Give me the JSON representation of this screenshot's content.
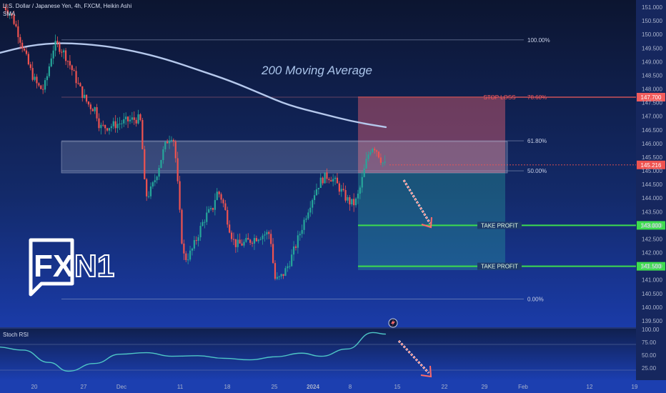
{
  "header": {
    "title": "U.S. Dollar / Japanese Yen, 4h, FXCM, Heikin Ashi",
    "indicator": "SMA"
  },
  "logo": {
    "part1": "FX",
    "part2": "N1"
  },
  "colors": {
    "bull": "#26a69a",
    "bear": "#ef5350",
    "sma": "#b5c8ec",
    "stop": "#f25c5c",
    "target": "#3ddc4e",
    "stoch": "#4ec6c6"
  },
  "price_axis": {
    "labels": [
      "151.000",
      "150.500",
      "150.000",
      "149.500",
      "149.000",
      "148.500",
      "148.000",
      "147.500",
      "147.000",
      "146.500",
      "146.000",
      "145.500",
      "145.000",
      "144.500",
      "144.000",
      "143.500",
      "143.000",
      "142.500",
      "142.000",
      "141.500",
      "141.000",
      "140.500",
      "140.000",
      "139.500"
    ]
  },
  "time_axis": {
    "labels": [
      "20",
      "27",
      "Dec",
      "11",
      "18",
      "25",
      "2024",
      "8",
      "15",
      "22",
      "29",
      "Feb",
      "12",
      "19"
    ]
  },
  "chart_data": {
    "type": "candlestick",
    "title": "U.S. Dollar / Japanese Yen, 4h, FXCM, Heikin Ashi",
    "ylim": [
      139.5,
      151.2
    ],
    "swing_points": [
      {
        "date": "Nov 16",
        "price": 151.0
      },
      {
        "date": "Nov 22",
        "price": 148.0
      },
      {
        "date": "Nov 24",
        "price": 149.6
      },
      {
        "date": "Nov 30",
        "price": 147.3
      },
      {
        "date": "Dec 1",
        "price": 146.6
      },
      {
        "date": "Dec 7",
        "price": 146.9
      },
      {
        "date": "Dec 8",
        "price": 144.1
      },
      {
        "date": "Dec 12",
        "price": 146.3
      },
      {
        "date": "Dec 14",
        "price": 141.8
      },
      {
        "date": "Dec 18",
        "price": 143.5
      },
      {
        "date": "Dec 19",
        "price": 144.2
      },
      {
        "date": "Dec 22",
        "price": 142.3
      },
      {
        "date": "Dec 27",
        "price": 142.7
      },
      {
        "date": "Dec 28",
        "price": 141.0
      },
      {
        "date": "Jan 5",
        "price": 144.8
      },
      {
        "date": "Jan 9",
        "price": 143.8
      },
      {
        "date": "Jan 12",
        "price": 145.9
      },
      {
        "date": "Jan 14",
        "price": 145.2
      }
    ],
    "sma": {
      "name": "200 Moving Average",
      "points": [
        {
          "date": "Nov 15",
          "price": 149.3
        },
        {
          "date": "Nov 20",
          "price": 149.6
        },
        {
          "date": "Nov 25",
          "price": 149.7
        },
        {
          "date": "Dec 1",
          "price": 149.6
        },
        {
          "date": "Dec 6",
          "price": 149.4
        },
        {
          "date": "Dec 11",
          "price": 149.1
        },
        {
          "date": "Dec 16",
          "price": 148.7
        },
        {
          "date": "Dec 21",
          "price": 148.3
        },
        {
          "date": "Dec 26",
          "price": 147.8
        },
        {
          "date": "Dec 30",
          "price": 147.4
        },
        {
          "date": "Jan 4",
          "price": 147.1
        },
        {
          "date": "Jan 9",
          "price": 146.8
        },
        {
          "date": "Jan 14",
          "price": 146.6
        }
      ]
    },
    "fibonacci": [
      {
        "label": "100.00%",
        "price": 149.8
      },
      {
        "label": "78.60%",
        "price": 147.7
      },
      {
        "label": "61.80%",
        "price": 146.1
      },
      {
        "label": "50.00%",
        "price": 145.0
      },
      {
        "label": "0.00%",
        "price": 140.3
      }
    ],
    "levels": [
      {
        "label": "STOP LOSS",
        "value": "147.700",
        "price": 147.7
      },
      {
        "label": "TAKE PROFIT",
        "value": "143.000",
        "price": 143.0
      },
      {
        "label": "TAKE PROFIT",
        "value": "141.500",
        "price": 141.5
      }
    ],
    "current_price": "145.216",
    "annotation": "200 Moving Average",
    "stoch_rsi": {
      "name": "Stoch RSI",
      "ylim": [
        0,
        100
      ],
      "labels": [
        "100.00",
        "75.00",
        "50.00",
        "25.00"
      ],
      "points": [
        {
          "date": "Nov 15",
          "value": 70
        },
        {
          "date": "Nov 19",
          "value": 64
        },
        {
          "date": "Nov 23",
          "value": 40
        },
        {
          "date": "Nov 26",
          "value": 23
        },
        {
          "date": "Nov 30",
          "value": 38
        },
        {
          "date": "Dec 4",
          "value": 56
        },
        {
          "date": "Dec 8",
          "value": 59
        },
        {
          "date": "Dec 12",
          "value": 52
        },
        {
          "date": "Dec 16",
          "value": 53
        },
        {
          "date": "Dec 20",
          "value": 48
        },
        {
          "date": "Dec 24",
          "value": 45
        },
        {
          "date": "Dec 28",
          "value": 51
        },
        {
          "date": "Jan 1",
          "value": 58
        },
        {
          "date": "Jan 4",
          "value": 52
        },
        {
          "date": "Jan 8",
          "value": 66
        },
        {
          "date": "Jan 12",
          "value": 98
        },
        {
          "date": "Jan 14",
          "value": 95
        }
      ]
    }
  }
}
